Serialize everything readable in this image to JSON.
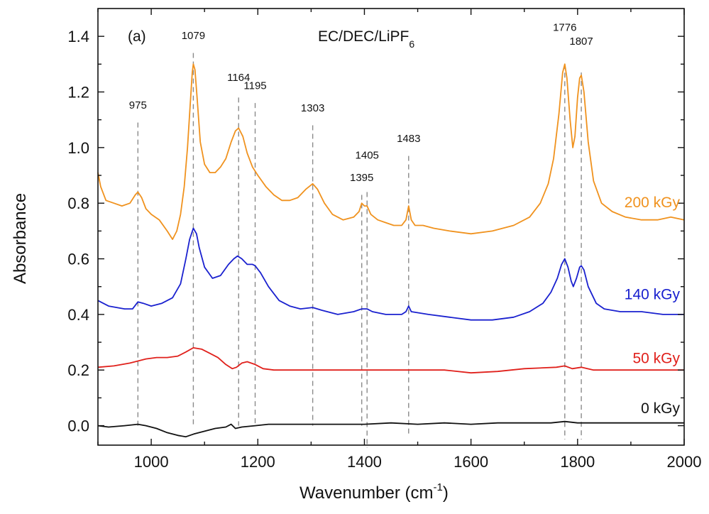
{
  "chart_data": {
    "type": "line",
    "title": "EC/DEC/LiPF",
    "title_subscript": "6",
    "panel_label": "(a)",
    "xlabel": "Wavenumber (cm",
    "xlabel_superscript": "-1",
    "xlabel_close": ")",
    "ylabel": "Absorbance",
    "xlim": [
      900,
      2000
    ],
    "ylim": [
      -0.07,
      1.5
    ],
    "x_ticks": [
      1000,
      1200,
      1400,
      1600,
      1800,
      2000
    ],
    "x_tick_labels": [
      "1000",
      "1200",
      "1400",
      "1600",
      "1800",
      "2000"
    ],
    "y_ticks": [
      0.0,
      0.2,
      0.4,
      0.6,
      0.8,
      1.0,
      1.2,
      1.4
    ],
    "y_tick_labels": [
      "0.0",
      "0.2",
      "0.4",
      "0.6",
      "0.8",
      "1.0",
      "1.2",
      "1.4"
    ],
    "grid": false,
    "peak_markers": [
      {
        "x": 975,
        "label": "975",
        "label_y": 1.14,
        "y_top": 1.09,
        "y_bottom": 0.0
      },
      {
        "x": 1079,
        "label": "1079",
        "label_y": 1.39,
        "y_top": 1.34,
        "y_bottom": 0.0
      },
      {
        "x": 1164,
        "label": "1164",
        "label_y": 1.24,
        "y_top": 1.18,
        "y_bottom": 0.0
      },
      {
        "x": 1195,
        "label": "1195",
        "label_y": 1.21,
        "y_top": 1.16,
        "y_bottom": 0.0
      },
      {
        "x": 1303,
        "label": "1303",
        "label_y": 1.13,
        "y_top": 1.08,
        "y_bottom": 0.0
      },
      {
        "x": 1395,
        "label": "1395",
        "label_y": 0.88,
        "y_top": 0.83,
        "y_bottom": 0.0
      },
      {
        "x": 1405,
        "label": "1405",
        "label_y": 0.96,
        "y_top": 0.84,
        "y_bottom": -0.08
      },
      {
        "x": 1483,
        "label": "1483",
        "label_y": 1.02,
        "y_top": 0.97,
        "y_bottom": -0.03
      },
      {
        "x": 1776,
        "label": "1776",
        "label_y": 1.42,
        "y_top": 1.3,
        "y_bottom": -0.05
      },
      {
        "x": 1807,
        "label": "1807",
        "label_y": 1.37,
        "y_top": 1.27,
        "y_bottom": -0.05
      }
    ],
    "series": [
      {
        "name": "200 kGy",
        "color": "#f0921e",
        "points": [
          [
            900,
            0.91
          ],
          [
            905,
            0.86
          ],
          [
            915,
            0.81
          ],
          [
            930,
            0.8
          ],
          [
            945,
            0.79
          ],
          [
            960,
            0.8
          ],
          [
            970,
            0.83
          ],
          [
            975,
            0.84
          ],
          [
            982,
            0.82
          ],
          [
            990,
            0.78
          ],
          [
            1000,
            0.76
          ],
          [
            1015,
            0.74
          ],
          [
            1030,
            0.7
          ],
          [
            1040,
            0.67
          ],
          [
            1048,
            0.7
          ],
          [
            1055,
            0.76
          ],
          [
            1062,
            0.86
          ],
          [
            1068,
            1.0
          ],
          [
            1073,
            1.15
          ],
          [
            1077,
            1.27
          ],
          [
            1079,
            1.3
          ],
          [
            1082,
            1.28
          ],
          [
            1086,
            1.18
          ],
          [
            1092,
            1.02
          ],
          [
            1100,
            0.94
          ],
          [
            1110,
            0.91
          ],
          [
            1120,
            0.91
          ],
          [
            1130,
            0.93
          ],
          [
            1140,
            0.96
          ],
          [
            1150,
            1.02
          ],
          [
            1158,
            1.06
          ],
          [
            1164,
            1.07
          ],
          [
            1172,
            1.04
          ],
          [
            1180,
            0.98
          ],
          [
            1190,
            0.93
          ],
          [
            1200,
            0.9
          ],
          [
            1215,
            0.86
          ],
          [
            1230,
            0.83
          ],
          [
            1245,
            0.81
          ],
          [
            1260,
            0.81
          ],
          [
            1275,
            0.82
          ],
          [
            1290,
            0.85
          ],
          [
            1303,
            0.87
          ],
          [
            1312,
            0.85
          ],
          [
            1325,
            0.8
          ],
          [
            1340,
            0.76
          ],
          [
            1360,
            0.74
          ],
          [
            1380,
            0.75
          ],
          [
            1390,
            0.77
          ],
          [
            1395,
            0.8
          ],
          [
            1400,
            0.79
          ],
          [
            1405,
            0.79
          ],
          [
            1412,
            0.76
          ],
          [
            1425,
            0.74
          ],
          [
            1440,
            0.73
          ],
          [
            1455,
            0.72
          ],
          [
            1470,
            0.72
          ],
          [
            1478,
            0.74
          ],
          [
            1483,
            0.79
          ],
          [
            1488,
            0.74
          ],
          [
            1495,
            0.72
          ],
          [
            1510,
            0.72
          ],
          [
            1530,
            0.71
          ],
          [
            1560,
            0.7
          ],
          [
            1600,
            0.69
          ],
          [
            1640,
            0.7
          ],
          [
            1680,
            0.72
          ],
          [
            1710,
            0.75
          ],
          [
            1730,
            0.8
          ],
          [
            1745,
            0.87
          ],
          [
            1755,
            0.96
          ],
          [
            1765,
            1.12
          ],
          [
            1772,
            1.27
          ],
          [
            1776,
            1.3
          ],
          [
            1780,
            1.25
          ],
          [
            1786,
            1.1
          ],
          [
            1791,
            1.0
          ],
          [
            1795,
            1.04
          ],
          [
            1800,
            1.18
          ],
          [
            1804,
            1.25
          ],
          [
            1807,
            1.26
          ],
          [
            1812,
            1.2
          ],
          [
            1820,
            1.02
          ],
          [
            1830,
            0.88
          ],
          [
            1845,
            0.8
          ],
          [
            1865,
            0.77
          ],
          [
            1890,
            0.75
          ],
          [
            1920,
            0.74
          ],
          [
            1950,
            0.74
          ],
          [
            1975,
            0.75
          ],
          [
            2000,
            0.74
          ]
        ]
      },
      {
        "name": "140 kGy",
        "color": "#1a21cf",
        "points": [
          [
            900,
            0.45
          ],
          [
            920,
            0.43
          ],
          [
            950,
            0.42
          ],
          [
            965,
            0.42
          ],
          [
            975,
            0.445
          ],
          [
            985,
            0.44
          ],
          [
            1000,
            0.43
          ],
          [
            1020,
            0.44
          ],
          [
            1040,
            0.46
          ],
          [
            1055,
            0.51
          ],
          [
            1065,
            0.6
          ],
          [
            1072,
            0.67
          ],
          [
            1079,
            0.71
          ],
          [
            1085,
            0.69
          ],
          [
            1090,
            0.64
          ],
          [
            1100,
            0.57
          ],
          [
            1115,
            0.53
          ],
          [
            1130,
            0.54
          ],
          [
            1145,
            0.58
          ],
          [
            1155,
            0.6
          ],
          [
            1162,
            0.61
          ],
          [
            1170,
            0.6
          ],
          [
            1180,
            0.58
          ],
          [
            1190,
            0.58
          ],
          [
            1195,
            0.575
          ],
          [
            1205,
            0.55
          ],
          [
            1220,
            0.5
          ],
          [
            1240,
            0.45
          ],
          [
            1260,
            0.43
          ],
          [
            1280,
            0.42
          ],
          [
            1303,
            0.425
          ],
          [
            1320,
            0.415
          ],
          [
            1350,
            0.4
          ],
          [
            1380,
            0.41
          ],
          [
            1395,
            0.42
          ],
          [
            1405,
            0.42
          ],
          [
            1415,
            0.41
          ],
          [
            1440,
            0.4
          ],
          [
            1470,
            0.4
          ],
          [
            1478,
            0.41
          ],
          [
            1483,
            0.43
          ],
          [
            1488,
            0.41
          ],
          [
            1520,
            0.4
          ],
          [
            1560,
            0.39
          ],
          [
            1600,
            0.38
          ],
          [
            1640,
            0.38
          ],
          [
            1680,
            0.39
          ],
          [
            1710,
            0.41
          ],
          [
            1735,
            0.44
          ],
          [
            1750,
            0.48
          ],
          [
            1762,
            0.53
          ],
          [
            1770,
            0.58
          ],
          [
            1776,
            0.6
          ],
          [
            1782,
            0.57
          ],
          [
            1788,
            0.52
          ],
          [
            1792,
            0.5
          ],
          [
            1798,
            0.53
          ],
          [
            1804,
            0.57
          ],
          [
            1807,
            0.575
          ],
          [
            1812,
            0.56
          ],
          [
            1820,
            0.5
          ],
          [
            1835,
            0.44
          ],
          [
            1850,
            0.42
          ],
          [
            1880,
            0.41
          ],
          [
            1920,
            0.41
          ],
          [
            1960,
            0.4
          ],
          [
            2000,
            0.4
          ]
        ]
      },
      {
        "name": "50 kGy",
        "color": "#e0201b",
        "points": [
          [
            900,
            0.21
          ],
          [
            930,
            0.215
          ],
          [
            960,
            0.225
          ],
          [
            990,
            0.24
          ],
          [
            1010,
            0.245
          ],
          [
            1030,
            0.245
          ],
          [
            1050,
            0.25
          ],
          [
            1065,
            0.265
          ],
          [
            1079,
            0.28
          ],
          [
            1095,
            0.275
          ],
          [
            1110,
            0.26
          ],
          [
            1125,
            0.245
          ],
          [
            1140,
            0.22
          ],
          [
            1152,
            0.205
          ],
          [
            1160,
            0.21
          ],
          [
            1170,
            0.225
          ],
          [
            1180,
            0.23
          ],
          [
            1195,
            0.22
          ],
          [
            1210,
            0.205
          ],
          [
            1230,
            0.2
          ],
          [
            1300,
            0.2
          ],
          [
            1400,
            0.2
          ],
          [
            1483,
            0.2
          ],
          [
            1550,
            0.2
          ],
          [
            1600,
            0.19
          ],
          [
            1650,
            0.195
          ],
          [
            1700,
            0.205
          ],
          [
            1760,
            0.21
          ],
          [
            1776,
            0.215
          ],
          [
            1790,
            0.205
          ],
          [
            1807,
            0.21
          ],
          [
            1830,
            0.2
          ],
          [
            1900,
            0.2
          ],
          [
            2000,
            0.2
          ]
        ]
      },
      {
        "name": "0 kGy",
        "color": "#111111",
        "points": [
          [
            900,
            0.0
          ],
          [
            920,
            -0.005
          ],
          [
            950,
            0.0
          ],
          [
            975,
            0.005
          ],
          [
            990,
            0.0
          ],
          [
            1010,
            -0.01
          ],
          [
            1030,
            -0.025
          ],
          [
            1050,
            -0.035
          ],
          [
            1065,
            -0.04
          ],
          [
            1080,
            -0.03
          ],
          [
            1100,
            -0.02
          ],
          [
            1120,
            -0.01
          ],
          [
            1140,
            -0.005
          ],
          [
            1150,
            0.005
          ],
          [
            1158,
            -0.01
          ],
          [
            1170,
            -0.005
          ],
          [
            1195,
            0.0
          ],
          [
            1220,
            0.005
          ],
          [
            1260,
            0.005
          ],
          [
            1303,
            0.005
          ],
          [
            1350,
            0.005
          ],
          [
            1400,
            0.005
          ],
          [
            1450,
            0.01
          ],
          [
            1500,
            0.005
          ],
          [
            1550,
            0.01
          ],
          [
            1600,
            0.005
          ],
          [
            1650,
            0.01
          ],
          [
            1700,
            0.01
          ],
          [
            1750,
            0.01
          ],
          [
            1776,
            0.015
          ],
          [
            1800,
            0.01
          ],
          [
            1850,
            0.01
          ],
          [
            1900,
            0.01
          ],
          [
            1950,
            0.01
          ],
          [
            2000,
            0.01
          ]
        ]
      }
    ],
    "series_labels": [
      {
        "text": "200 kGy",
        "color": "#f0921e",
        "y": 0.785
      },
      {
        "text": "140 kGy",
        "color": "#1a21cf",
        "y": 0.455
      },
      {
        "text": "50 kGy",
        "color": "#e0201b",
        "y": 0.225
      },
      {
        "text": "0 kGy",
        "color": "#111111",
        "y": 0.045
      }
    ]
  }
}
